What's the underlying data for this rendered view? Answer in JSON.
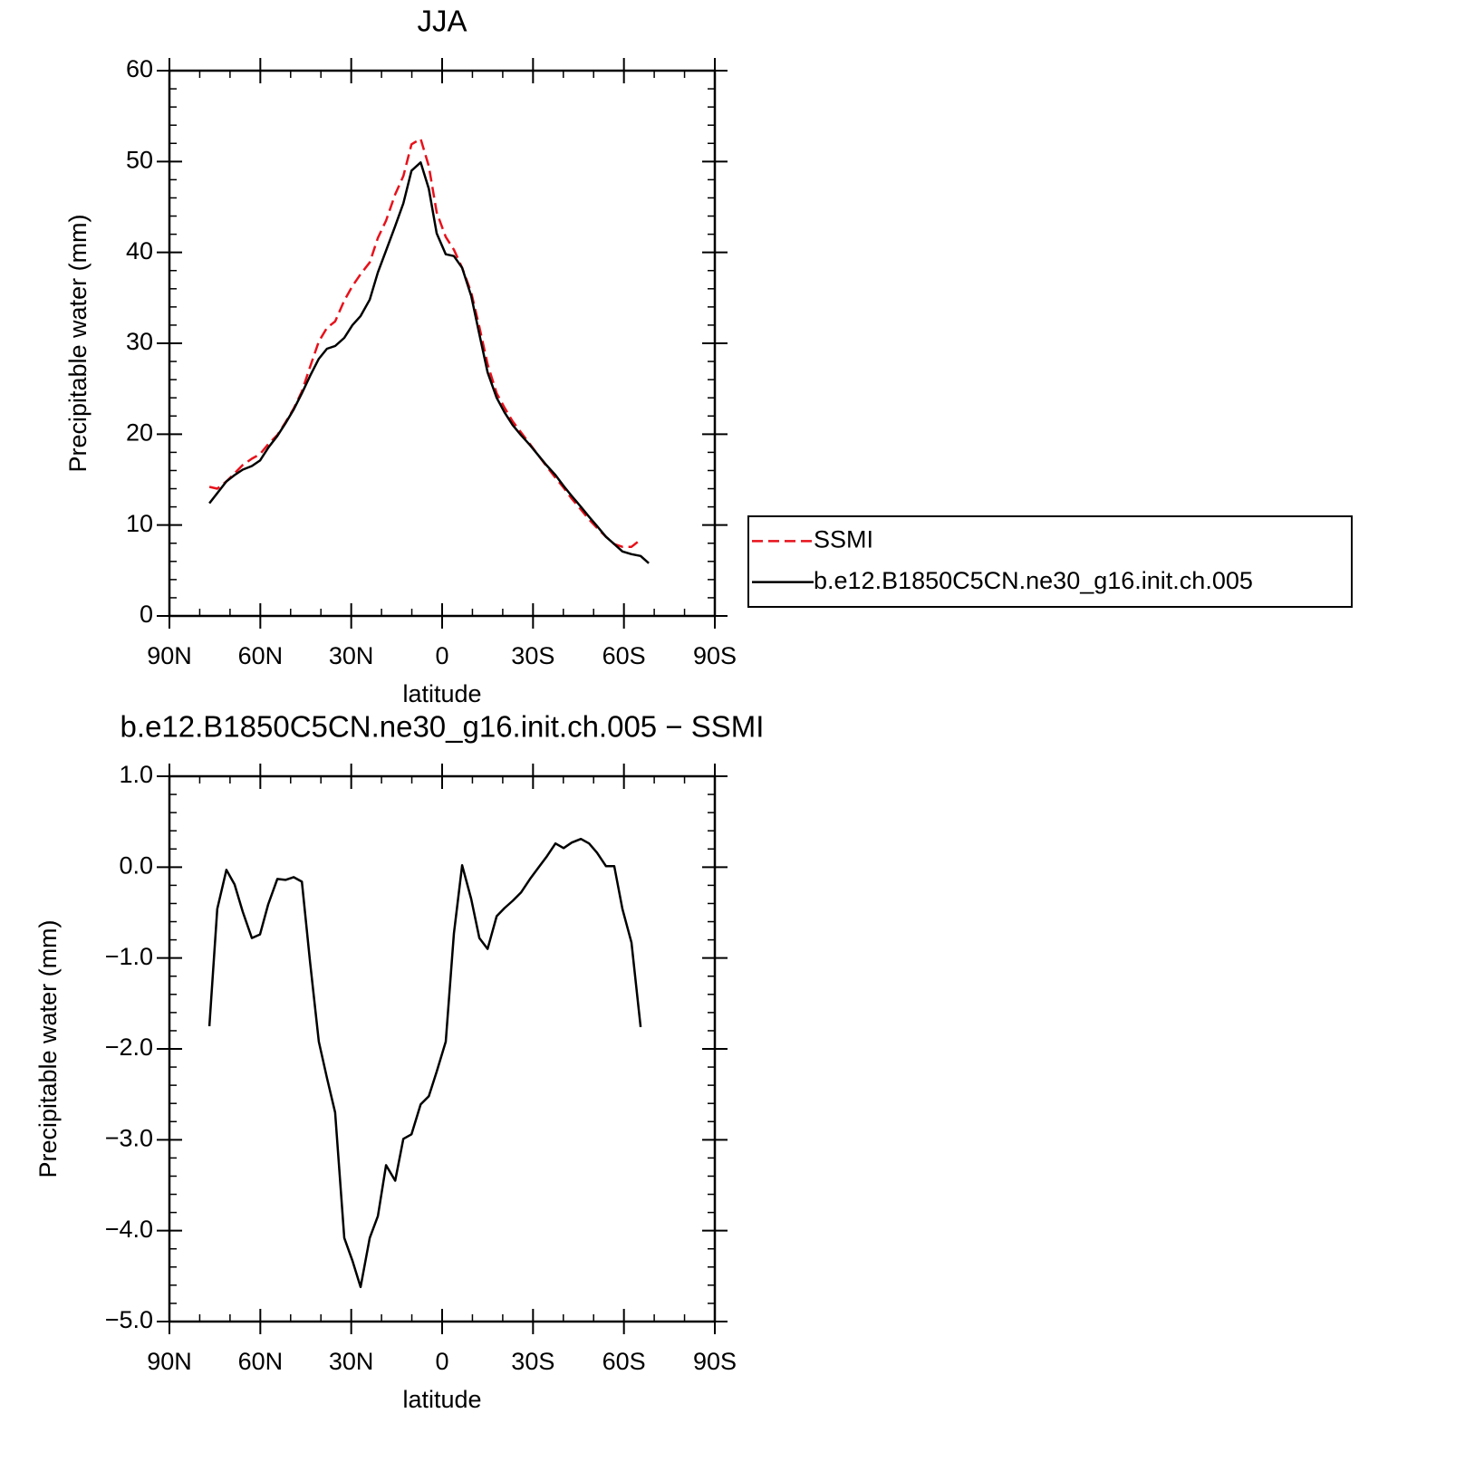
{
  "chart_data": [
    {
      "type": "line",
      "title": "JJA",
      "xlabel": "latitude",
      "ylabel": "Precipitable water (mm)",
      "x": [
        76.8,
        74.2,
        71.2,
        68.5,
        65.8,
        62.8,
        60.1,
        57.4,
        54.4,
        51.7,
        49.0,
        46.3,
        43.6,
        40.7,
        38.0,
        35.3,
        32.3,
        29.6,
        26.9,
        23.9,
        21.2,
        18.5,
        15.5,
        12.8,
        10.1,
        7.1,
        4.4,
        1.8,
        -1.2,
        -3.9,
        -6.6,
        -9.6,
        -12.3,
        -15.0,
        -18.0,
        -20.6,
        -23.3,
        -26.0,
        -29.0,
        -31.7,
        -34.4,
        -37.4,
        -40.1,
        -42.8,
        -45.8,
        -48.5,
        -51.1,
        -54.1,
        -56.8,
        -59.5,
        -62.5,
        -65.5,
        -68.2
      ],
      "series": [
        {
          "name": "SSMI",
          "color": "#e8101a",
          "line_style": "dashed",
          "values": [
            14.2,
            14.0,
            14.8,
            15.7,
            16.6,
            17.3,
            17.8,
            18.9,
            19.9,
            21.3,
            22.8,
            24.7,
            27.4,
            30.2,
            31.7,
            32.4,
            34.7,
            36.3,
            37.6,
            38.9,
            41.6,
            43.5,
            46.4,
            48.4,
            51.9,
            52.5,
            49.5,
            44.4,
            41.7,
            40.3,
            38.3,
            35.6,
            31.8,
            27.7,
            24.5,
            22.9,
            21.4,
            20.2,
            18.9,
            17.7,
            16.5,
            15.2,
            14.1,
            12.9,
            11.7,
            10.6,
            9.7,
            8.7,
            7.9,
            7.6,
            7.6,
            8.4,
            null
          ]
        },
        {
          "name": "b.e12.B1850C5CN.ne30_g16.init.ch.005",
          "color": "#000000",
          "line_style": "solid",
          "values": [
            12.4,
            13.5,
            14.8,
            15.5,
            16.1,
            16.5,
            17.1,
            18.5,
            19.8,
            21.2,
            22.7,
            24.5,
            26.4,
            28.3,
            29.4,
            29.7,
            30.6,
            32.0,
            33.0,
            34.8,
            37.8,
            40.2,
            42.9,
            45.4,
            49.0,
            49.9,
            47.0,
            42.1,
            39.8,
            39.6,
            38.3,
            35.2,
            31.0,
            26.8,
            24.0,
            22.4,
            21.0,
            19.9,
            18.8,
            17.7,
            16.6,
            15.5,
            14.3,
            13.2,
            12.0,
            10.9,
            9.9,
            8.7,
            7.9,
            7.1,
            6.8,
            6.6,
            5.8
          ]
        }
      ],
      "xlim": [
        90,
        -90
      ],
      "xticks": [
        {
          "value": 90,
          "label": "90N"
        },
        {
          "value": 60,
          "label": "60N"
        },
        {
          "value": 30,
          "label": "30N"
        },
        0,
        {
          "value": -30,
          "label": "30S"
        },
        {
          "value": -60,
          "label": "60S"
        },
        {
          "value": -90,
          "label": "90S"
        }
      ],
      "ylim": [
        0,
        60
      ],
      "yticks": [
        0,
        10,
        20,
        30,
        40,
        50,
        60
      ],
      "legend": "right"
    },
    {
      "type": "line",
      "title": "b.e12.B1850C5CN.ne30_g16.init.ch.005 − SSMI",
      "xlabel": "latitude",
      "ylabel": "Precipitable water (mm)",
      "x": [
        76.8,
        74.2,
        71.2,
        68.5,
        65.8,
        62.8,
        60.1,
        57.4,
        54.4,
        51.7,
        49.0,
        46.3,
        43.6,
        40.7,
        38.0,
        35.3,
        32.3,
        29.6,
        26.9,
        23.9,
        21.2,
        18.5,
        15.5,
        12.8,
        10.1,
        7.1,
        4.4,
        1.8,
        -1.2,
        -3.9,
        -6.6,
        -9.6,
        -12.3,
        -15.0,
        -18.0,
        -20.6,
        -23.3,
        -26.0,
        -29.0,
        -31.7,
        -34.4,
        -37.4,
        -40.1,
        -42.8,
        -45.8,
        -48.5,
        -51.1,
        -54.1,
        -56.8,
        -59.5,
        -62.5,
        -65.5
      ],
      "series": [
        {
          "color": "#000000",
          "line_style": "solid",
          "values": [
            -1.75,
            -0.46,
            -0.03,
            -0.19,
            -0.49,
            -0.78,
            -0.74,
            -0.41,
            -0.13,
            -0.14,
            -0.11,
            -0.16,
            -1.04,
            -1.92,
            -2.32,
            -2.7,
            -4.08,
            -4.33,
            -4.62,
            -4.08,
            -3.84,
            -3.28,
            -3.45,
            -2.99,
            -2.94,
            -2.61,
            -2.52,
            -2.25,
            -1.92,
            -0.73,
            0.02,
            -0.35,
            -0.78,
            -0.9,
            -0.54,
            -0.45,
            -0.37,
            -0.28,
            -0.13,
            -0.01,
            0.11,
            0.26,
            0.21,
            0.27,
            0.31,
            0.26,
            0.16,
            0.01,
            0.01,
            -0.46,
            -0.83,
            -1.76
          ]
        }
      ],
      "xlim": [
        90,
        -90
      ],
      "xticks": [
        {
          "value": 90,
          "label": "90N"
        },
        {
          "value": 60,
          "label": "60N"
        },
        {
          "value": 30,
          "label": "30N"
        },
        0,
        {
          "value": -30,
          "label": "30S"
        },
        {
          "value": -60,
          "label": "60S"
        },
        {
          "value": -90,
          "label": "90S"
        }
      ],
      "ylim": [
        -5,
        1
      ],
      "yticks": [
        {
          "value": -5,
          "label": "−5.0"
        },
        {
          "value": -4,
          "label": "−4.0"
        },
        {
          "value": -3,
          "label": "−3.0"
        },
        {
          "value": -2,
          "label": "−2.0"
        },
        {
          "value": -1,
          "label": "−1.0"
        },
        {
          "value": 0,
          "label": "0.0"
        },
        {
          "value": 1,
          "label": "1.0"
        }
      ]
    }
  ]
}
